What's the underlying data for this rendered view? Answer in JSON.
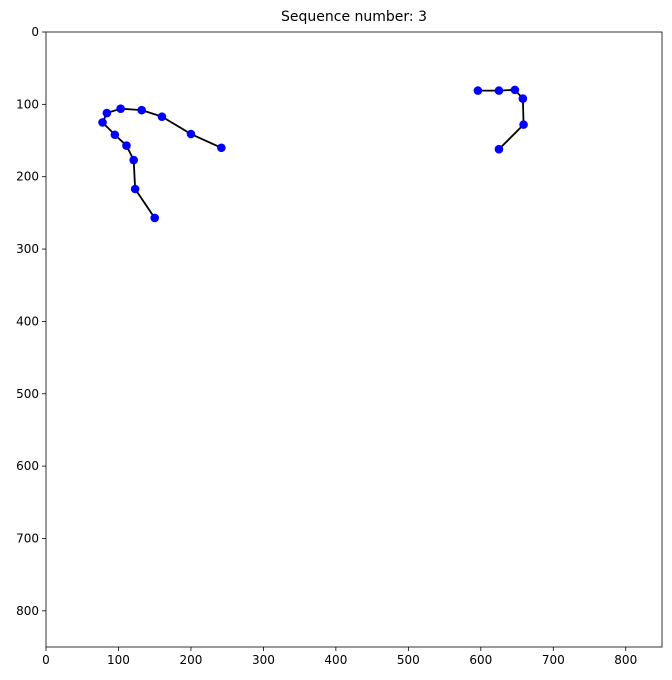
{
  "chart_data": {
    "type": "scatter",
    "title": "Sequence number: 3",
    "xlabel": "",
    "ylabel": "",
    "xlim": [
      0,
      850
    ],
    "ylim": [
      850,
      0
    ],
    "y_inverted": true,
    "xticks": [
      0,
      100,
      200,
      300,
      400,
      500,
      600,
      700,
      800
    ],
    "yticks": [
      0,
      100,
      200,
      300,
      400,
      500,
      600,
      700,
      800
    ],
    "grid": false,
    "marker_color": "#0000ff",
    "line_color": "#000000",
    "series": [
      {
        "points": [
          {
            "x": 242,
            "y": 160
          },
          {
            "x": 200,
            "y": 141
          },
          {
            "x": 160,
            "y": 117
          },
          {
            "x": 132,
            "y": 108
          },
          {
            "x": 103,
            "y": 106
          },
          {
            "x": 84,
            "y": 112
          },
          {
            "x": 78,
            "y": 125
          },
          {
            "x": 95,
            "y": 142
          },
          {
            "x": 111,
            "y": 157
          },
          {
            "x": 121,
            "y": 177
          },
          {
            "x": 123,
            "y": 217
          },
          {
            "x": 150,
            "y": 257
          }
        ]
      },
      {
        "points": [
          {
            "x": 596,
            "y": 81
          },
          {
            "x": 625,
            "y": 81
          },
          {
            "x": 647,
            "y": 80
          },
          {
            "x": 658,
            "y": 92
          },
          {
            "x": 659,
            "y": 128
          },
          {
            "x": 625,
            "y": 162
          }
        ]
      }
    ]
  }
}
